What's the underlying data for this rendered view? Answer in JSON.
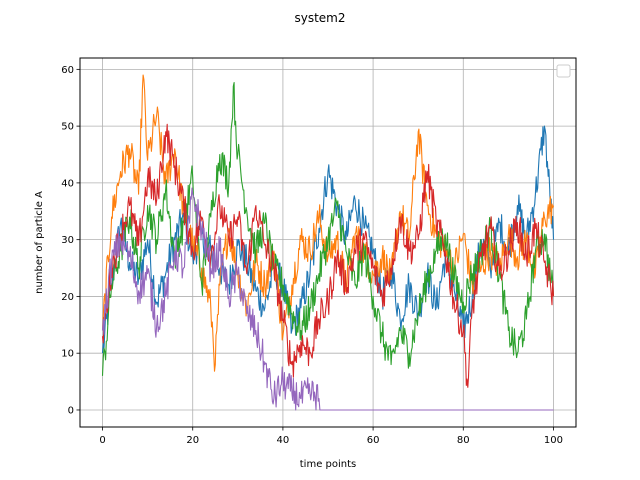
{
  "chart_data": {
    "type": "line",
    "title": "system2",
    "xlabel": "time points",
    "ylabel": "number of particle A",
    "xlim": [
      -5,
      105
    ],
    "ylim": [
      -3,
      62
    ],
    "xticks": [
      0,
      20,
      40,
      60,
      80,
      100
    ],
    "yticks": [
      0,
      10,
      20,
      30,
      40,
      50,
      60
    ],
    "grid": true,
    "legend": "top-right-empty",
    "series": [
      {
        "color": "#1f77b4",
        "points": [
          [
            0,
            10
          ],
          [
            2,
            22
          ],
          [
            4,
            33
          ],
          [
            6,
            26
          ],
          [
            8,
            23
          ],
          [
            10,
            30
          ],
          [
            12,
            19
          ],
          [
            14,
            24
          ],
          [
            16,
            30
          ],
          [
            18,
            34
          ],
          [
            20,
            27
          ],
          [
            22,
            31
          ],
          [
            24,
            28
          ],
          [
            26,
            25
          ],
          [
            28,
            22
          ],
          [
            30,
            29
          ],
          [
            32,
            26
          ],
          [
            34,
            21
          ],
          [
            36,
            18
          ],
          [
            38,
            25
          ],
          [
            40,
            22
          ],
          [
            42,
            14
          ],
          [
            44,
            18
          ],
          [
            46,
            24
          ],
          [
            48,
            32
          ],
          [
            50,
            42
          ],
          [
            52,
            36
          ],
          [
            54,
            30
          ],
          [
            56,
            37
          ],
          [
            58,
            32
          ],
          [
            60,
            28
          ],
          [
            62,
            20
          ],
          [
            64,
            25
          ],
          [
            66,
            16
          ],
          [
            68,
            22
          ],
          [
            70,
            17
          ],
          [
            72,
            24
          ],
          [
            74,
            18
          ],
          [
            76,
            27
          ],
          [
            78,
            21
          ],
          [
            80,
            14
          ],
          [
            82,
            20
          ],
          [
            84,
            30
          ],
          [
            86,
            25
          ],
          [
            88,
            33
          ],
          [
            90,
            28
          ],
          [
            92,
            36
          ],
          [
            94,
            30
          ],
          [
            96,
            38
          ],
          [
            98,
            50
          ],
          [
            100,
            30
          ]
        ]
      },
      {
        "color": "#ff7f0e",
        "points": [
          [
            0,
            14
          ],
          [
            2,
            34
          ],
          [
            4,
            42
          ],
          [
            6,
            46
          ],
          [
            8,
            38
          ],
          [
            9,
            59
          ],
          [
            10,
            44
          ],
          [
            12,
            52
          ],
          [
            14,
            40
          ],
          [
            16,
            46
          ],
          [
            18,
            35
          ],
          [
            20,
            29
          ],
          [
            22,
            25
          ],
          [
            24,
            18
          ],
          [
            25,
            8
          ],
          [
            26,
            22
          ],
          [
            28,
            32
          ],
          [
            30,
            24
          ],
          [
            32,
            18
          ],
          [
            34,
            26
          ],
          [
            36,
            22
          ],
          [
            38,
            28
          ],
          [
            40,
            13
          ],
          [
            42,
            22
          ],
          [
            44,
            30
          ],
          [
            46,
            28
          ],
          [
            48,
            34
          ],
          [
            50,
            27
          ],
          [
            52,
            30
          ],
          [
            54,
            22
          ],
          [
            56,
            31
          ],
          [
            58,
            28
          ],
          [
            60,
            24
          ],
          [
            62,
            27
          ],
          [
            64,
            23
          ],
          [
            66,
            35
          ],
          [
            68,
            30
          ],
          [
            70,
            49
          ],
          [
            72,
            36
          ],
          [
            74,
            31
          ],
          [
            76,
            28
          ],
          [
            78,
            25
          ],
          [
            80,
            31
          ],
          [
            82,
            22
          ],
          [
            84,
            25
          ],
          [
            86,
            28
          ],
          [
            88,
            25
          ],
          [
            90,
            31
          ],
          [
            92,
            27
          ],
          [
            94,
            30
          ],
          [
            96,
            24
          ],
          [
            98,
            34
          ],
          [
            100,
            36
          ]
        ]
      },
      {
        "color": "#2ca02c",
        "points": [
          [
            0,
            6
          ],
          [
            2,
            22
          ],
          [
            4,
            28
          ],
          [
            6,
            34
          ],
          [
            8,
            25
          ],
          [
            10,
            36
          ],
          [
            12,
            30
          ],
          [
            14,
            39
          ],
          [
            16,
            27
          ],
          [
            18,
            33
          ],
          [
            20,
            41
          ],
          [
            22,
            22
          ],
          [
            24,
            34
          ],
          [
            26,
            45
          ],
          [
            28,
            40
          ],
          [
            29,
            57
          ],
          [
            30,
            45
          ],
          [
            32,
            35
          ],
          [
            34,
            28
          ],
          [
            36,
            33
          ],
          [
            38,
            25
          ],
          [
            40,
            22
          ],
          [
            42,
            17
          ],
          [
            44,
            14
          ],
          [
            46,
            18
          ],
          [
            48,
            24
          ],
          [
            50,
            30
          ],
          [
            52,
            36
          ],
          [
            54,
            28
          ],
          [
            56,
            22
          ],
          [
            58,
            28
          ],
          [
            60,
            20
          ],
          [
            62,
            13
          ],
          [
            64,
            8
          ],
          [
            66,
            14
          ],
          [
            68,
            10
          ],
          [
            70,
            17
          ],
          [
            72,
            23
          ],
          [
            74,
            28
          ],
          [
            76,
            31
          ],
          [
            78,
            23
          ],
          [
            80,
            19
          ],
          [
            82,
            24
          ],
          [
            84,
            28
          ],
          [
            86,
            32
          ],
          [
            88,
            24
          ],
          [
            90,
            14
          ],
          [
            92,
            10
          ],
          [
            94,
            16
          ],
          [
            96,
            28
          ],
          [
            98,
            31
          ],
          [
            100,
            20
          ]
        ]
      },
      {
        "color": "#d62728",
        "points": [
          [
            0,
            13
          ],
          [
            2,
            25
          ],
          [
            4,
            31
          ],
          [
            6,
            36
          ],
          [
            8,
            29
          ],
          [
            10,
            41
          ],
          [
            12,
            37
          ],
          [
            14,
            49
          ],
          [
            16,
            43
          ],
          [
            18,
            36
          ],
          [
            20,
            28
          ],
          [
            22,
            34
          ],
          [
            24,
            27
          ],
          [
            26,
            36
          ],
          [
            28,
            30
          ],
          [
            30,
            34
          ],
          [
            32,
            24
          ],
          [
            34,
            36
          ],
          [
            36,
            29
          ],
          [
            38,
            25
          ],
          [
            40,
            16
          ],
          [
            42,
            8
          ],
          [
            44,
            12
          ],
          [
            46,
            10
          ],
          [
            48,
            16
          ],
          [
            50,
            19
          ],
          [
            52,
            27
          ],
          [
            54,
            22
          ],
          [
            56,
            28
          ],
          [
            58,
            30
          ],
          [
            60,
            25
          ],
          [
            62,
            20
          ],
          [
            64,
            25
          ],
          [
            66,
            34
          ],
          [
            68,
            28
          ],
          [
            70,
            30
          ],
          [
            72,
            42
          ],
          [
            74,
            33
          ],
          [
            76,
            28
          ],
          [
            78,
            19
          ],
          [
            80,
            14
          ],
          [
            81,
            4
          ],
          [
            82,
            18
          ],
          [
            84,
            27
          ],
          [
            86,
            32
          ],
          [
            88,
            24
          ],
          [
            90,
            28
          ],
          [
            92,
            33
          ],
          [
            94,
            27
          ],
          [
            96,
            32
          ],
          [
            98,
            26
          ],
          [
            100,
            20
          ]
        ]
      },
      {
        "color": "#9467bd",
        "points": [
          [
            0,
            14
          ],
          [
            2,
            26
          ],
          [
            4,
            30
          ],
          [
            6,
            27
          ],
          [
            8,
            21
          ],
          [
            10,
            24
          ],
          [
            12,
            15
          ],
          [
            14,
            20
          ],
          [
            16,
            28
          ],
          [
            18,
            25
          ],
          [
            20,
            38
          ],
          [
            22,
            32
          ],
          [
            24,
            25
          ],
          [
            26,
            28
          ],
          [
            28,
            20
          ],
          [
            30,
            24
          ],
          [
            32,
            17
          ],
          [
            34,
            14
          ],
          [
            36,
            8
          ],
          [
            38,
            2
          ],
          [
            40,
            5
          ],
          [
            42,
            3
          ],
          [
            44,
            2
          ],
          [
            46,
            3
          ],
          [
            48,
            2
          ],
          [
            48.2,
            0
          ],
          [
            100,
            0
          ]
        ]
      }
    ]
  }
}
